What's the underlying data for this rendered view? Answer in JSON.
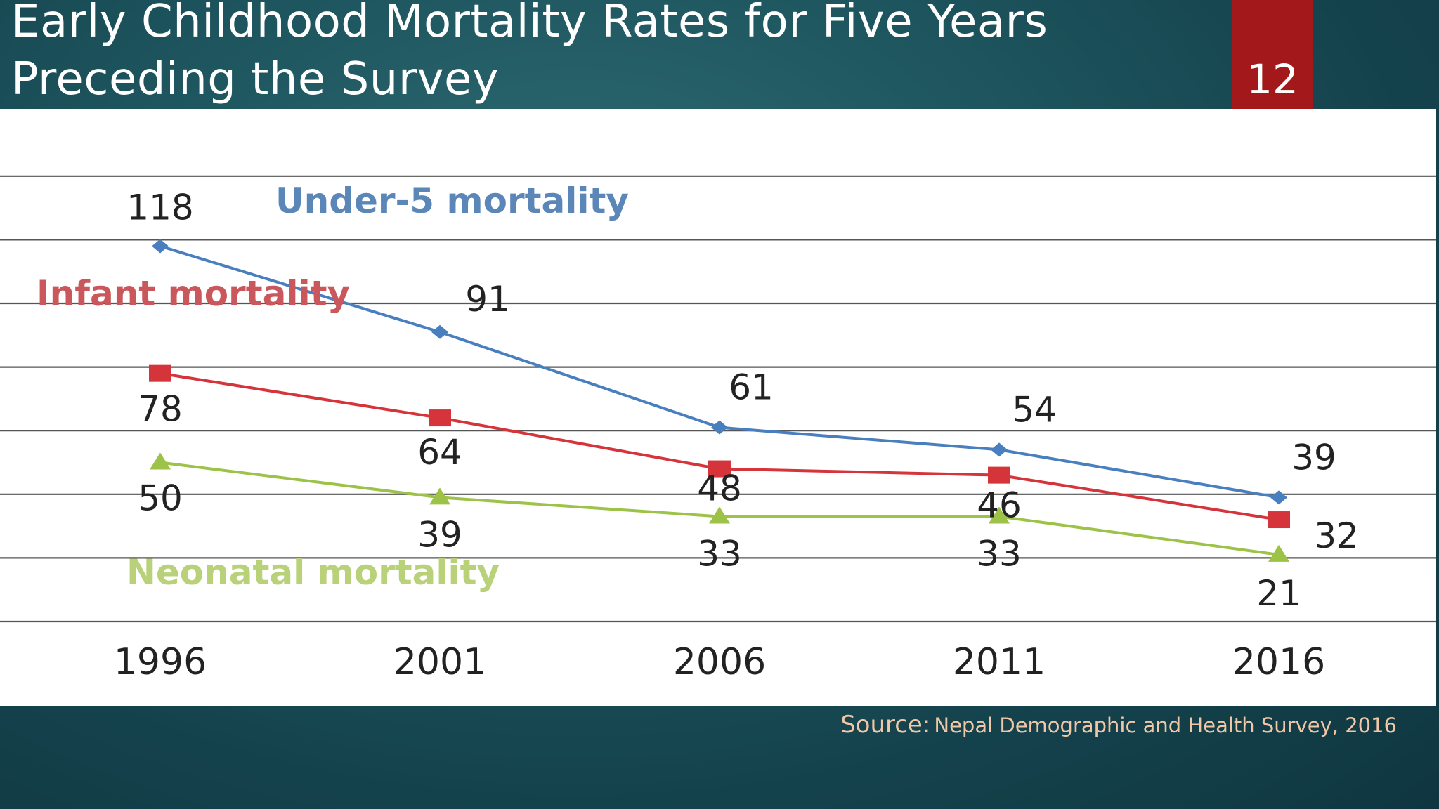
{
  "slide": {
    "title": "Early Childhood Mortality Rates for Five Years Preceding the Survey",
    "page_number": "12",
    "source_label": "Source:",
    "source_text": "Nepal Demographic and Health Survey, 2016"
  },
  "colors": {
    "background": "#1f5760",
    "badge": "#a3181a",
    "under5": "#4a7fbf",
    "infant": "#d6343b",
    "neonatal": "#9cc248",
    "source_text": "#f0c8a8"
  },
  "chart_data": {
    "type": "line",
    "categories": [
      "1996",
      "2001",
      "2006",
      "2011",
      "2016"
    ],
    "series": [
      {
        "name": "Under-5 mortality",
        "values": [
          118,
          91,
          61,
          54,
          39
        ],
        "color": "#4a7fbf",
        "marker": "diamond"
      },
      {
        "name": "Infant mortality",
        "values": [
          78,
          64,
          48,
          46,
          32
        ],
        "color": "#d6343b",
        "marker": "square"
      },
      {
        "name": "Neonatal mortality",
        "values": [
          50,
          39,
          33,
          33,
          21
        ],
        "color": "#9cc248",
        "marker": "triangle"
      }
    ],
    "title": "",
    "xlabel": "",
    "ylabel": "",
    "ylim": [
      0,
      140
    ],
    "grid": true,
    "legend": "series names written on chart next to lines"
  }
}
